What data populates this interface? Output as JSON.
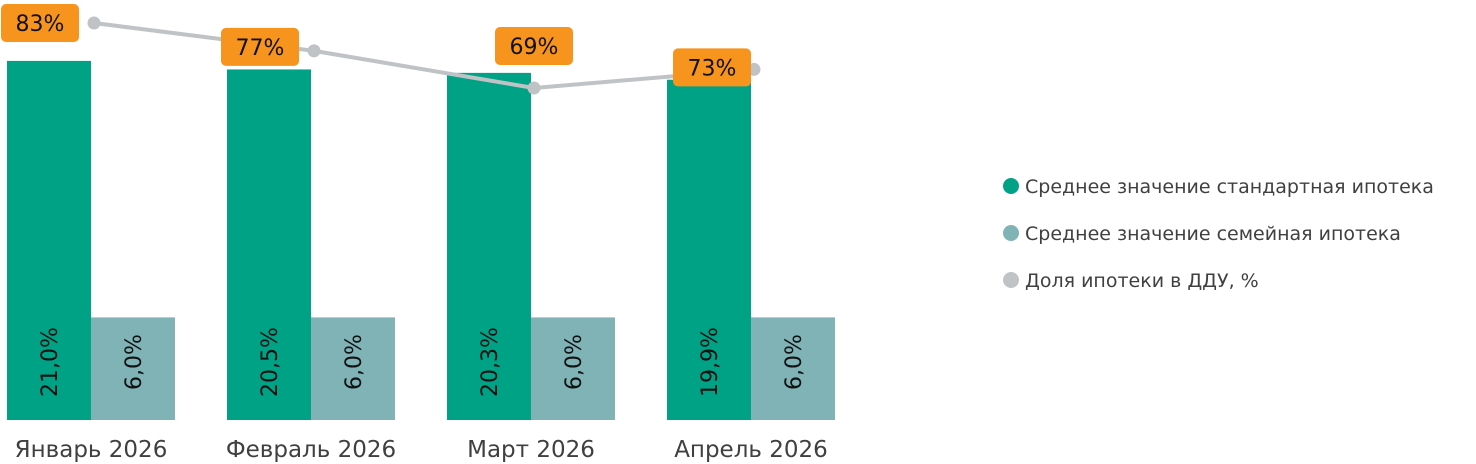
{
  "chart_data": {
    "type": "bar",
    "categories": [
      "Январь 2026",
      "Февраль 2026",
      "Март 2026",
      "Апрель 2026"
    ],
    "series": [
      {
        "name": "Среднее значение стандартная ипотека",
        "kind": "bar",
        "color": "#00A286",
        "values": [
          21.0,
          20.5,
          20.3,
          19.9
        ],
        "labels": [
          "21,0%",
          "20,5%",
          "20,3%",
          "19,9%"
        ]
      },
      {
        "name": "Среднее значение семейная ипотека",
        "kind": "bar",
        "color": "#7FB3B6",
        "values": [
          6.0,
          6.0,
          6.0,
          6.0
        ],
        "labels": [
          "6,0%",
          "6,0%",
          "6,0%",
          "6,0%"
        ]
      },
      {
        "name": "Доля ипотеки в ДДУ, %",
        "kind": "line",
        "color": "#C0C3C6",
        "label_bg": "#F7941D",
        "values": [
          83,
          77,
          69,
          73
        ],
        "labels": [
          "83%",
          "77%",
          "69%",
          "73%"
        ]
      }
    ],
    "legend": "right",
    "grid": false
  }
}
